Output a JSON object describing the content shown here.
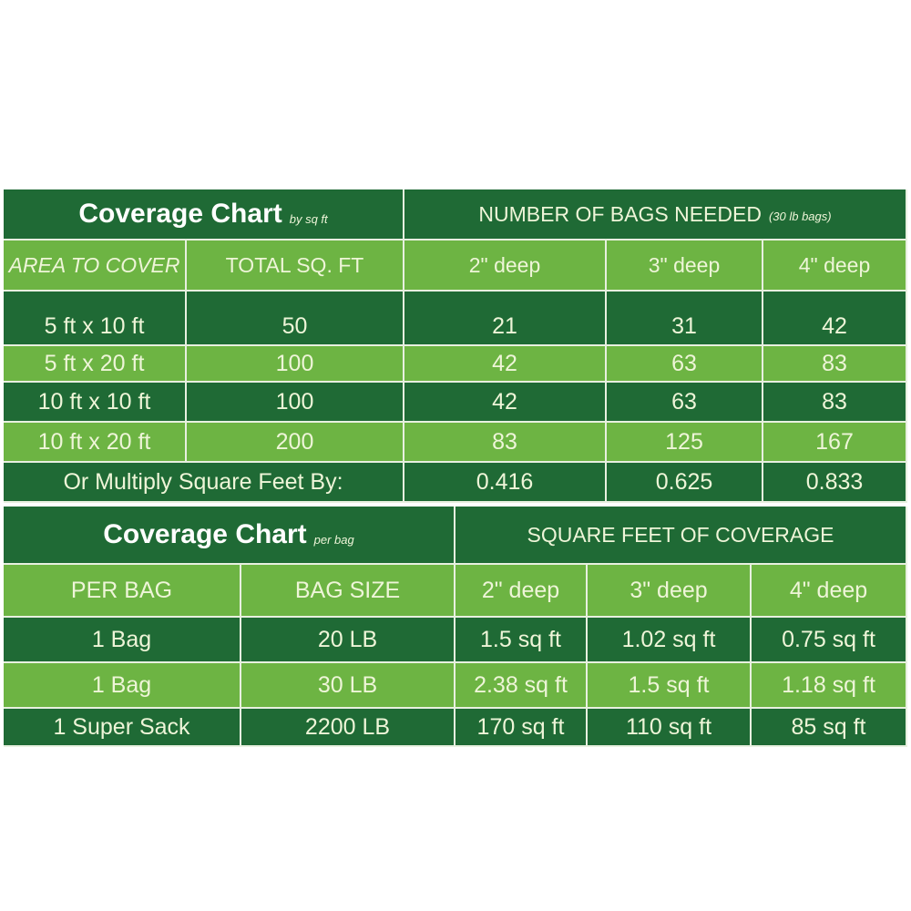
{
  "chart1": {
    "title": "Coverage Chart",
    "title_sub": "by sq ft",
    "group_header": "NUMBER OF BAGS NEEDED",
    "group_header_sub": "(30 lb bags)",
    "columns": [
      "AREA TO COVER",
      "TOTAL SQ. FT",
      "2\" deep",
      "3\" deep",
      "4\" deep"
    ],
    "rows": [
      [
        "5 ft x 10 ft",
        "50",
        "21",
        "31",
        "42"
      ],
      [
        "5 ft x 20 ft",
        "100",
        "42",
        "63",
        "83"
      ],
      [
        "10 ft x 10 ft",
        "100",
        "42",
        "63",
        "83"
      ],
      [
        "10 ft x 20 ft",
        "200",
        "83",
        "125",
        "167"
      ]
    ],
    "multiplier_label": "Or Multiply Square Feet By:",
    "multipliers": [
      "0.416",
      "0.625",
      "0.833"
    ]
  },
  "chart2": {
    "title": "Coverage Chart",
    "title_sub": "per bag",
    "group_header": "SQUARE FEET OF COVERAGE",
    "columns": [
      "PER BAG",
      "BAG SIZE",
      "2\" deep",
      "3\" deep",
      "4\" deep"
    ],
    "rows": [
      [
        "1 Bag",
        "20 LB",
        "1.5 sq ft",
        "1.02 sq ft",
        "0.75 sq ft"
      ],
      [
        "1 Bag",
        "30 LB",
        "2.38 sq ft",
        "1.5 sq ft",
        "1.18 sq ft"
      ],
      [
        "1 Super Sack",
        "2200 LB",
        "170 sq ft",
        "110 sq ft",
        "85 sq ft"
      ]
    ]
  },
  "colors": {
    "dark_green": "#1f6a35",
    "light_green": "#6db443",
    "text": "#eef5d8"
  }
}
